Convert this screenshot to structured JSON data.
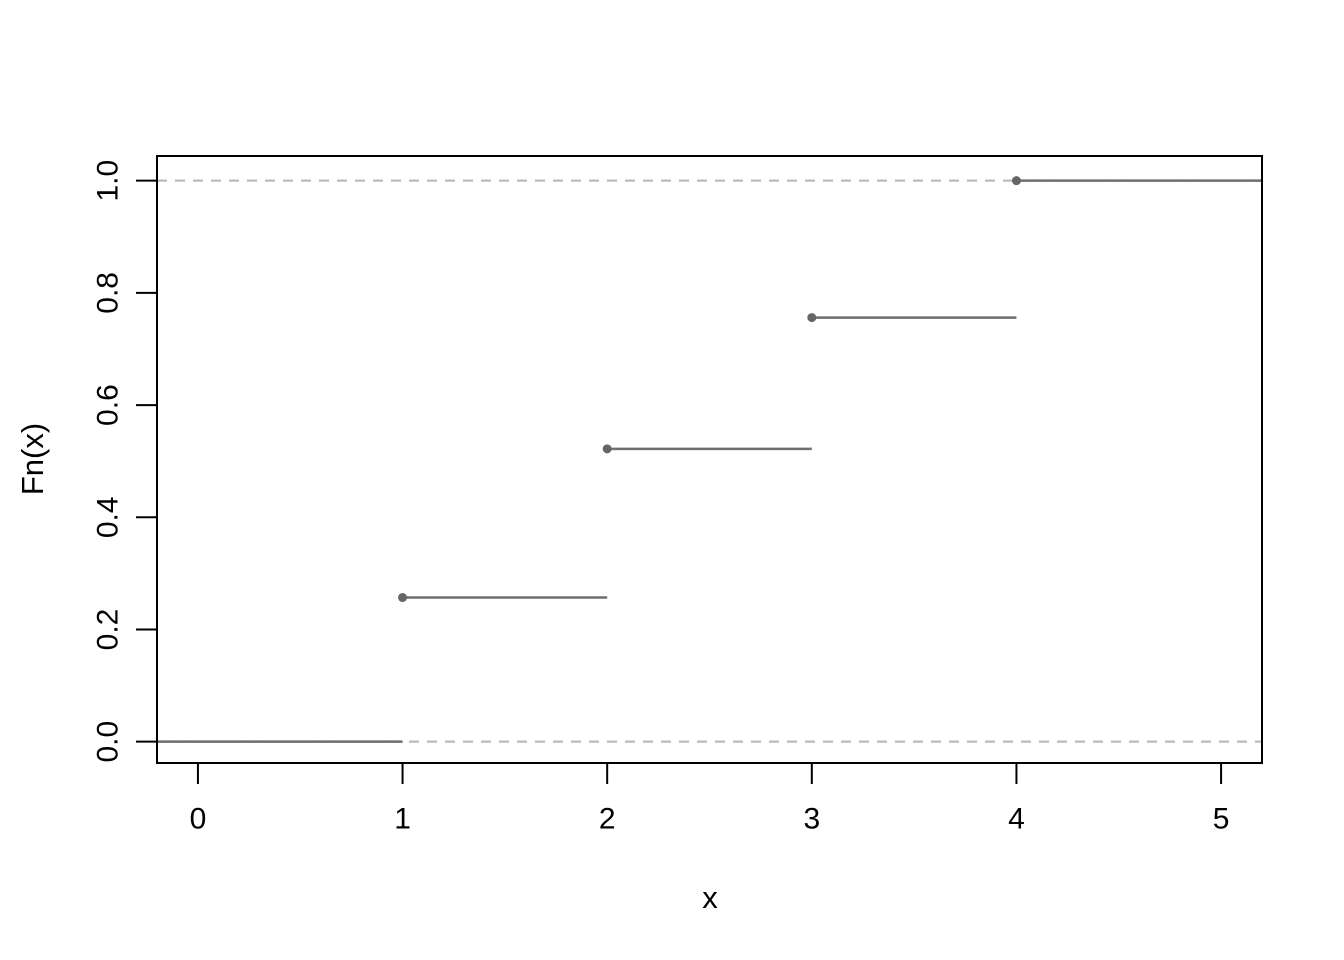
{
  "chart_data": {
    "type": "step",
    "subtype": "ecdf",
    "title": "",
    "xlabel": "x",
    "ylabel": "Fn(x)",
    "x_ticks": [
      "0",
      "1",
      "2",
      "3",
      "4",
      "5"
    ],
    "x_tick_values": [
      0,
      1,
      2,
      3,
      4,
      5
    ],
    "y_ticks": [
      "0.0",
      "0.2",
      "0.4",
      "0.6",
      "0.8",
      "1.0"
    ],
    "y_tick_values": [
      0,
      0.2,
      0.4,
      0.6,
      0.8,
      1.0
    ],
    "xlim": [
      -0.2,
      5.2
    ],
    "ylim": [
      -0.038,
      1.044
    ],
    "points": [
      {
        "x": 1,
        "y": 0.257
      },
      {
        "x": 2,
        "y": 0.522
      },
      {
        "x": 3,
        "y": 0.756
      },
      {
        "x": 4,
        "y": 1.0
      }
    ],
    "reference_lines": [
      {
        "y": 0,
        "style": "dashed"
      },
      {
        "y": 1,
        "style": "dashed"
      }
    ],
    "grid": false,
    "legend": null,
    "colors": {
      "point": "#666666",
      "step_line": "#6e6e6e",
      "reference_line": "#b5b5b5",
      "axis": "#000000",
      "background": "#ffffff"
    }
  }
}
